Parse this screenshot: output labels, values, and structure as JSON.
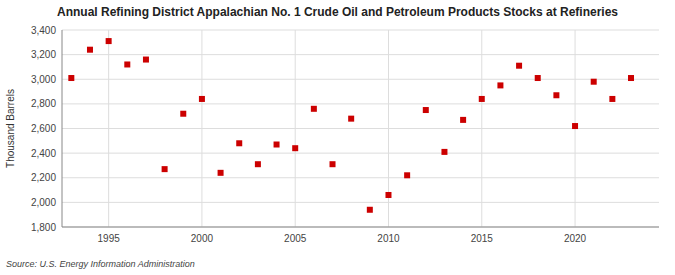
{
  "chart_data": {
    "type": "scatter",
    "title": "Annual Refining District Appalachian No. 1 Crude Oil and Petroleum Products Stocks at Refineries",
    "ylabel": "Thousand Barrels",
    "source": "Source: U.S. Energy Information Administration",
    "color": "#cc0000",
    "marker": "square",
    "grid": true,
    "x": [
      1993,
      1994,
      1995,
      1996,
      1997,
      1998,
      1999,
      2000,
      2001,
      2002,
      2003,
      2004,
      2005,
      2006,
      2007,
      2008,
      2009,
      2010,
      2011,
      2012,
      2013,
      2014,
      2015,
      2016,
      2017,
      2018,
      2019,
      2020,
      2021,
      2022,
      2023
    ],
    "values": [
      3010,
      3240,
      3310,
      3120,
      3160,
      2270,
      2720,
      2840,
      2240,
      2480,
      2310,
      2470,
      2440,
      2760,
      2310,
      2680,
      1940,
      2060,
      2220,
      2750,
      2410,
      2670,
      2840,
      2950,
      3110,
      3010,
      2870,
      2620,
      2980,
      2840,
      3010
    ],
    "xlim": [
      1992.5,
      2024.5
    ],
    "ylim": [
      1800,
      3400
    ],
    "xticks": [
      1995,
      2000,
      2005,
      2010,
      2015,
      2020
    ],
    "yticks": [
      {
        "value": 1800,
        "label": "1,800"
      },
      {
        "value": 2000,
        "label": "2,000"
      },
      {
        "value": 2200,
        "label": "2,200"
      },
      {
        "value": 2400,
        "label": "2,400"
      },
      {
        "value": 2600,
        "label": "2,600"
      },
      {
        "value": 2800,
        "label": "2,800"
      },
      {
        "value": 3000,
        "label": "3,000"
      },
      {
        "value": 3200,
        "label": "3,200"
      },
      {
        "value": 3400,
        "label": "3,400"
      }
    ]
  }
}
